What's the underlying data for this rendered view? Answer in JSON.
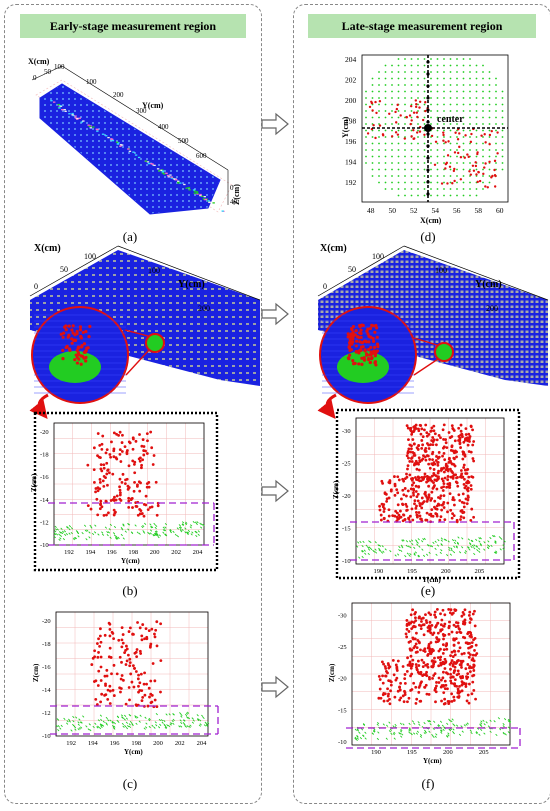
{
  "headers": {
    "left": "Early-stage measurement region",
    "right": "Late-stage measurement region"
  },
  "captions": {
    "a": "(a)",
    "b": "(b)",
    "c": "(c)",
    "d": "(d)",
    "e": "(e)",
    "f": "(f)"
  },
  "panel_a": {
    "x_axis_label": "X(cm)",
    "y_axis_label": "Y(cm)",
    "z_axis_label": "Z(cm)",
    "x_ticks": [
      "0",
      "50",
      "100"
    ],
    "y_ticks": [
      "100",
      "200",
      "300",
      "400",
      "500",
      "600"
    ],
    "z_ticks": [
      "0",
      "40"
    ]
  },
  "panel_b_3d": {
    "x_axis_label": "X(cm)",
    "y_axis_label": "Y(cm)",
    "x_ticks": [
      "0",
      "50",
      "100"
    ],
    "y_ticks": [
      "100",
      "200"
    ]
  },
  "panel_b_2d": {
    "x_axis_label": "Y(cm)",
    "z_axis_label": "Z(cm)",
    "x_ticks": [
      "192",
      "194",
      "196",
      "198",
      "200",
      "202",
      "204"
    ],
    "z_ticks": [
      "-20",
      "-18",
      "-16",
      "-14",
      "-12",
      "-10"
    ]
  },
  "panel_c": {
    "x_axis_label": "Y(cm)",
    "z_axis_label": "Z(cm)",
    "x_ticks": [
      "192",
      "194",
      "196",
      "198",
      "200",
      "202",
      "204"
    ],
    "z_ticks": [
      "-20",
      "-18",
      "-16",
      "-14",
      "-12",
      "-10"
    ]
  },
  "panel_d": {
    "x_axis_label": "X(cm)",
    "y_axis_label": "Y(cm)",
    "center_label": "center",
    "x_ticks": [
      "48",
      "50",
      "52",
      "54",
      "56",
      "58",
      "60"
    ],
    "y_ticks": [
      "204",
      "202",
      "200",
      "198",
      "196",
      "194",
      "192"
    ]
  },
  "panel_e_3d": {
    "x_axis_label": "X(cm)",
    "y_axis_label": "Y(cm)",
    "x_ticks": [
      "0",
      "50",
      "100"
    ],
    "y_ticks": [
      "100",
      "200"
    ]
  },
  "panel_e_2d": {
    "x_axis_label": "Y(cm)",
    "z_axis_label": "Z(cm)",
    "x_ticks": [
      "190",
      "195",
      "200",
      "205"
    ],
    "z_ticks": [
      "-30",
      "-25",
      "-20",
      "-15",
      "-10"
    ]
  },
  "panel_f": {
    "x_axis_label": "Y(cm)",
    "z_axis_label": "Z(cm)",
    "x_ticks": [
      "190",
      "195",
      "200",
      "205"
    ],
    "z_ticks": [
      "-30",
      "-25",
      "-20",
      "-15",
      "-10"
    ]
  },
  "colors": {
    "header_bg": "#b6e3b0",
    "point_red": "#e01010",
    "point_green": "#22cc22",
    "surface_blue": "#1a22e0",
    "grid_pink": "#f2b8b8",
    "dash_purple": "#a020d0",
    "arrow_stroke": "#666666"
  },
  "icons": [
    "hollow-right-arrow-icon",
    "red-curved-arrow-icon",
    "magnifier-circle-icon"
  ]
}
